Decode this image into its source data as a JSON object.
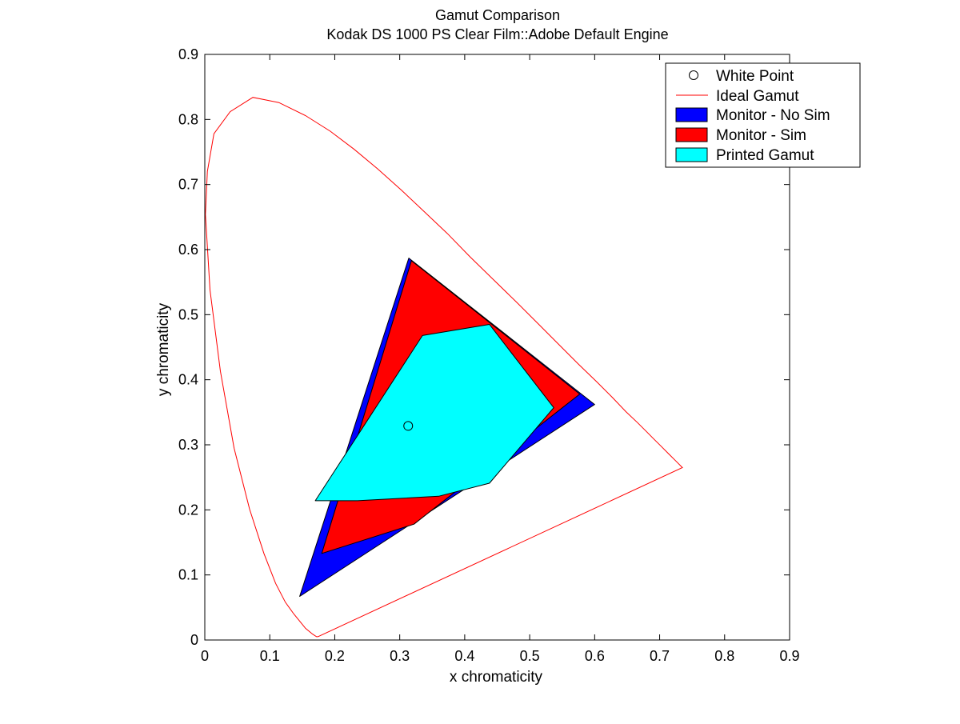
{
  "chart_data": {
    "type": "area",
    "title": "Gamut Comparison",
    "subtitle": "Kodak DS 1000 PS Clear Film::Adobe Default Engine",
    "xlabel": "x chromaticity",
    "ylabel": "y chromaticity",
    "xlim": [
      0,
      0.9
    ],
    "ylim": [
      0,
      0.9
    ],
    "xticks": [
      0,
      0.1,
      0.2,
      0.3,
      0.4,
      0.5,
      0.6,
      0.7,
      0.8,
      0.9
    ],
    "yticks": [
      0,
      0.1,
      0.2,
      0.3,
      0.4,
      0.5,
      0.6,
      0.7,
      0.8,
      0.9
    ],
    "xtick_labels": [
      "0",
      "0.1",
      "0.2",
      "0.3",
      "0.4",
      "0.5",
      "0.6",
      "0.7",
      "0.8",
      "0.9"
    ],
    "ytick_labels": [
      "0",
      "0.1",
      "0.2",
      "0.3",
      "0.4",
      "0.5",
      "0.6",
      "0.7",
      "0.8",
      "0.9"
    ],
    "grid": false,
    "legend_position": "top-right",
    "series": [
      {
        "name": "White Point",
        "kind": "marker",
        "color": "#000000",
        "points": [
          [
            0.313,
            0.329
          ]
        ]
      },
      {
        "name": "Ideal Gamut",
        "kind": "line",
        "color": "#ff0000",
        "points": [
          [
            0.174,
            0.005
          ],
          [
            0.172,
            0.005
          ],
          [
            0.166,
            0.009
          ],
          [
            0.155,
            0.018
          ],
          [
            0.137,
            0.04
          ],
          [
            0.124,
            0.058
          ],
          [
            0.109,
            0.087
          ],
          [
            0.091,
            0.133
          ],
          [
            0.069,
            0.201
          ],
          [
            0.045,
            0.295
          ],
          [
            0.024,
            0.413
          ],
          [
            0.008,
            0.538
          ],
          [
            0.001,
            0.654
          ],
          [
            0.004,
            0.72
          ],
          [
            0.014,
            0.778
          ],
          [
            0.039,
            0.812
          ],
          [
            0.074,
            0.834
          ],
          [
            0.114,
            0.826
          ],
          [
            0.155,
            0.806
          ],
          [
            0.193,
            0.782
          ],
          [
            0.23,
            0.754
          ],
          [
            0.266,
            0.724
          ],
          [
            0.302,
            0.692
          ],
          [
            0.337,
            0.659
          ],
          [
            0.373,
            0.625
          ],
          [
            0.408,
            0.589
          ],
          [
            0.444,
            0.554
          ],
          [
            0.479,
            0.52
          ],
          [
            0.512,
            0.487
          ],
          [
            0.544,
            0.455
          ],
          [
            0.575,
            0.424
          ],
          [
            0.603,
            0.397
          ],
          [
            0.627,
            0.373
          ],
          [
            0.648,
            0.351
          ],
          [
            0.666,
            0.334
          ],
          [
            0.68,
            0.32
          ],
          [
            0.691,
            0.309
          ],
          [
            0.701,
            0.299
          ],
          [
            0.714,
            0.286
          ],
          [
            0.725,
            0.275
          ],
          [
            0.735,
            0.265
          ],
          [
            0.174,
            0.005
          ]
        ]
      },
      {
        "name": "Monitor - No Sim",
        "kind": "area",
        "color": "#0000ff",
        "points": [
          [
            0.314,
            0.587
          ],
          [
            0.6,
            0.362
          ],
          [
            0.146,
            0.067
          ]
        ]
      },
      {
        "name": "Monitor - Sim",
        "kind": "area",
        "color": "#ff0000",
        "points": [
          [
            0.318,
            0.583
          ],
          [
            0.577,
            0.378
          ],
          [
            0.322,
            0.178
          ],
          [
            0.18,
            0.133
          ]
        ]
      },
      {
        "name": "Printed Gamut",
        "kind": "area",
        "color": "#00ffff",
        "points": [
          [
            0.335,
            0.468
          ],
          [
            0.438,
            0.485
          ],
          [
            0.537,
            0.357
          ],
          [
            0.438,
            0.241
          ],
          [
            0.36,
            0.221
          ],
          [
            0.235,
            0.214
          ],
          [
            0.17,
            0.214
          ]
        ]
      }
    ]
  }
}
